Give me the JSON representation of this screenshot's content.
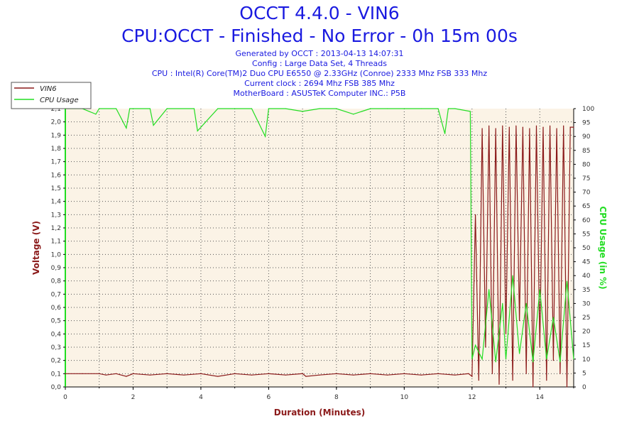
{
  "header": {
    "title": "OCCT 4.4.0 - VIN6",
    "subtitle": "CPU:OCCT - Finished - No Error - 0h 15m 00s",
    "info_lines": [
      "Generated by OCCT : 2013-04-13 14:07:31",
      "Config : Large Data Set, 4 Threads",
      "CPU : Intel(R) Core(TM)2 Duo CPU E6550 @ 2.33GHz (Conroe) 2333 Mhz FSB 333 Mhz",
      "Current clock : 2694 Mhz FSB 385 Mhz",
      "MotherBoard : ASUSTeK Computer INC.: P5B"
    ]
  },
  "colors": {
    "vin6": "#8b1a1a",
    "cpu": "#22dd22",
    "plot_bg": "#fbf3e6",
    "title": "#1a1ae0"
  },
  "chart_data": {
    "type": "line",
    "xlabel": "Duration (Minutes)",
    "ylabel_left": "Voltage (V)",
    "ylabel_right": "CPU Usage (in %)",
    "xlim": [
      0,
      15
    ],
    "ylim_left": [
      0,
      2.1
    ],
    "ylim_right": [
      0,
      100
    ],
    "x_ticks": [
      "0",
      "2",
      "4",
      "6",
      "8",
      "10",
      "12",
      "14"
    ],
    "y_left_ticks": [
      "0,0",
      "0,1",
      "0,2",
      "0,3",
      "0,4",
      "0,5",
      "0,6",
      "0,7",
      "0,8",
      "0,9",
      "1,0",
      "1,1",
      "1,2",
      "1,3",
      "1,4",
      "1,5",
      "1,6",
      "1,7",
      "1,8",
      "1,9",
      "2,0",
      "2,1"
    ],
    "y_right_ticks": [
      "0",
      "5",
      "10",
      "15",
      "20",
      "25",
      "30",
      "35",
      "40",
      "45",
      "50",
      "55",
      "60",
      "65",
      "70",
      "75",
      "80",
      "85",
      "90",
      "95",
      "100"
    ],
    "legend": [
      "VIN6",
      "CPU Usage"
    ],
    "legend_position": "top-left",
    "grid": true,
    "series": [
      {
        "name": "VIN6",
        "axis": "left",
        "x": [
          0,
          0.5,
          1,
          1.2,
          1.5,
          1.8,
          2,
          2.5,
          3,
          3.5,
          4,
          4.5,
          5,
          5.5,
          6,
          6.5,
          7,
          7.1,
          7.5,
          8,
          8.5,
          9,
          9.5,
          10,
          10.5,
          11,
          11.5,
          11.9,
          12.0,
          12.1,
          12.2,
          12.3,
          12.4,
          12.5,
          12.6,
          12.7,
          12.8,
          12.9,
          13.0,
          13.1,
          13.2,
          13.3,
          13.4,
          13.5,
          13.6,
          13.7,
          13.8,
          13.9,
          14.0,
          14.1,
          14.2,
          14.3,
          14.4,
          14.5,
          14.6,
          14.7,
          14.8,
          14.9,
          15.0
        ],
        "values": [
          0.1,
          0.1,
          0.1,
          0.09,
          0.1,
          0.08,
          0.1,
          0.09,
          0.1,
          0.09,
          0.1,
          0.08,
          0.1,
          0.09,
          0.1,
          0.09,
          0.1,
          0.08,
          0.09,
          0.1,
          0.09,
          0.1,
          0.09,
          0.1,
          0.09,
          0.1,
          0.09,
          0.1,
          0.08,
          1.3,
          0.05,
          1.95,
          0.3,
          1.97,
          0.1,
          1.95,
          0.02,
          1.97,
          0.4,
          1.96,
          0.05,
          1.97,
          0.5,
          1.96,
          0.1,
          1.95,
          0.0,
          1.97,
          0.3,
          1.96,
          0.05,
          1.97,
          0.2,
          1.95,
          0.1,
          1.97,
          0.0,
          1.96,
          1.96
        ]
      },
      {
        "name": "CPU Usage",
        "axis": "right",
        "x": [
          0,
          0.5,
          0.9,
          1.0,
          1.5,
          1.8,
          1.9,
          2.5,
          2.6,
          3.0,
          3.8,
          3.9,
          4.5,
          5.0,
          5.5,
          5.9,
          6.0,
          6.5,
          7.0,
          7.5,
          8.0,
          8.5,
          9.0,
          9.5,
          10.0,
          10.5,
          11.0,
          11.2,
          11.3,
          11.5,
          11.95,
          12.0,
          12.1,
          12.3,
          12.5,
          12.7,
          12.9,
          13.0,
          13.2,
          13.4,
          13.6,
          13.8,
          14.0,
          14.2,
          14.4,
          14.6,
          14.8,
          15.0
        ],
        "values": [
          100,
          100,
          98,
          100,
          100,
          93,
          100,
          100,
          94,
          100,
          100,
          92,
          100,
          100,
          100,
          90,
          100,
          100,
          99,
          100,
          100,
          98,
          100,
          100,
          100,
          100,
          100,
          91,
          100,
          100,
          99,
          10,
          15,
          10,
          35,
          9,
          30,
          10,
          40,
          12,
          30,
          9,
          35,
          10,
          25,
          9,
          38,
          10
        ]
      }
    ]
  }
}
